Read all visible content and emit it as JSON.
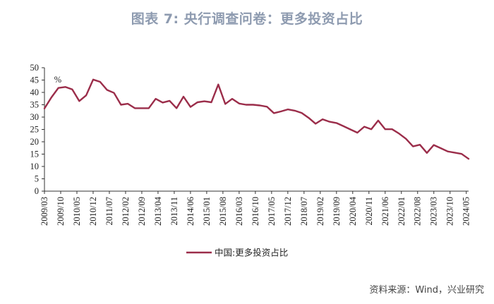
{
  "title": "图表 7:  央行调查问卷：更多投资占比",
  "source": "资料来源：Wind，兴业研究",
  "chart_data": {
    "type": "line",
    "unit_label": "%",
    "ylim": [
      0,
      50
    ],
    "yticks": [
      0,
      5,
      10,
      15,
      20,
      25,
      30,
      35,
      40,
      45,
      50
    ],
    "x_tick_labels": [
      "2009/03",
      "2009/10",
      "2010/05",
      "2010/12",
      "2011/07",
      "2012/02",
      "2012/09",
      "2013/04",
      "2013/11",
      "2014/06",
      "2015/01",
      "2015/08",
      "2016/03",
      "2016/10",
      "2017/05",
      "2017/12",
      "2018/07",
      "2019/02",
      "2019/09",
      "2020/04",
      "2020/11",
      "2021/06",
      "2022/01",
      "2022/08",
      "2023/03",
      "2023/10",
      "2024/05"
    ],
    "grid": false,
    "legend_position": "bottom-center",
    "series": [
      {
        "name": "中国:更多投资占比",
        "color": "#9b2d4a",
        "x": [
          "2009/03",
          "2009/06",
          "2009/09",
          "2009/12",
          "2010/03",
          "2010/06",
          "2010/09",
          "2010/12",
          "2011/03",
          "2011/06",
          "2011/09",
          "2011/12",
          "2012/03",
          "2012/06",
          "2012/09",
          "2012/12",
          "2013/03",
          "2013/06",
          "2013/09",
          "2013/12",
          "2014/03",
          "2014/06",
          "2014/09",
          "2014/12",
          "2015/03",
          "2015/06",
          "2015/09",
          "2015/12",
          "2016/03",
          "2016/06",
          "2016/09",
          "2016/12",
          "2017/03",
          "2017/06",
          "2017/09",
          "2017/12",
          "2018/03",
          "2018/06",
          "2018/09",
          "2018/12",
          "2019/03",
          "2019/06",
          "2019/09",
          "2019/12",
          "2020/03",
          "2020/06",
          "2020/09",
          "2020/12",
          "2021/03",
          "2021/06",
          "2021/09",
          "2021/12",
          "2022/03",
          "2022/06",
          "2022/09",
          "2022/12",
          "2023/03",
          "2023/06",
          "2023/09",
          "2023/12",
          "2024/03",
          "2024/06"
        ],
        "values": [
          33.5,
          38.0,
          41.8,
          42.2,
          41.2,
          36.5,
          38.8,
          45.2,
          44.3,
          41.0,
          39.8,
          35.0,
          35.4,
          33.6,
          33.6,
          33.6,
          37.4,
          35.9,
          36.6,
          33.6,
          38.3,
          34.1,
          36.0,
          36.4,
          36.0,
          43.2,
          35.3,
          37.4,
          35.5,
          35.0,
          35.0,
          34.7,
          34.2,
          31.6,
          32.3,
          33.1,
          32.6,
          31.7,
          29.7,
          27.3,
          29.1,
          28.1,
          27.6,
          26.3,
          25.0,
          23.7,
          26.1,
          25.1,
          28.6,
          25.1,
          25.1,
          23.3,
          21.2,
          18.1,
          18.8,
          15.5,
          18.7,
          17.4,
          16.1,
          15.6,
          15.1,
          13.1
        ]
      }
    ]
  }
}
